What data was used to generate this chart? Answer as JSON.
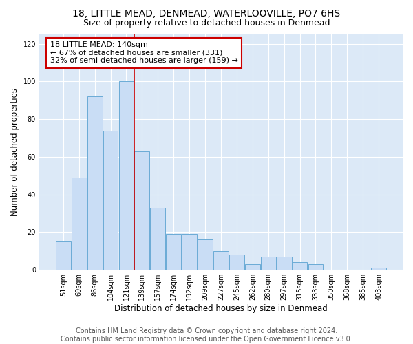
{
  "title": "18, LITTLE MEAD, DENMEAD, WATERLOOVILLE, PO7 6HS",
  "subtitle": "Size of property relative to detached houses in Denmead",
  "xlabel": "Distribution of detached houses by size in Denmead",
  "ylabel": "Number of detached properties",
  "categories": [
    "51sqm",
    "69sqm",
    "86sqm",
    "104sqm",
    "121sqm",
    "139sqm",
    "157sqm",
    "174sqm",
    "192sqm",
    "209sqm",
    "227sqm",
    "245sqm",
    "262sqm",
    "280sqm",
    "297sqm",
    "315sqm",
    "333sqm",
    "350sqm",
    "368sqm",
    "385sqm",
    "403sqm"
  ],
  "values": [
    15,
    49,
    92,
    74,
    100,
    63,
    33,
    19,
    19,
    16,
    10,
    8,
    3,
    7,
    7,
    4,
    3,
    0,
    0,
    0,
    1
  ],
  "bar_color": "#c9ddf5",
  "bar_edge_color": "#6aabd6",
  "highlight_line_color": "#cc0000",
  "annotation_line1": "18 LITTLE MEAD: 140sqm",
  "annotation_line2": "← 67% of detached houses are smaller (331)",
  "annotation_line3": "32% of semi-detached houses are larger (159) →",
  "annotation_box_color": "#ffffff",
  "annotation_box_edge_color": "#cc0000",
  "ylim": [
    0,
    125
  ],
  "yticks": [
    0,
    20,
    40,
    60,
    80,
    100,
    120
  ],
  "footer_text": "Contains HM Land Registry data © Crown copyright and database right 2024.\nContains public sector information licensed under the Open Government Licence v3.0.",
  "plot_bg_color": "#dce9f7",
  "title_fontsize": 10,
  "subtitle_fontsize": 9,
  "axis_label_fontsize": 8.5,
  "tick_fontsize": 7,
  "footer_fontsize": 7,
  "annotation_fontsize": 8
}
